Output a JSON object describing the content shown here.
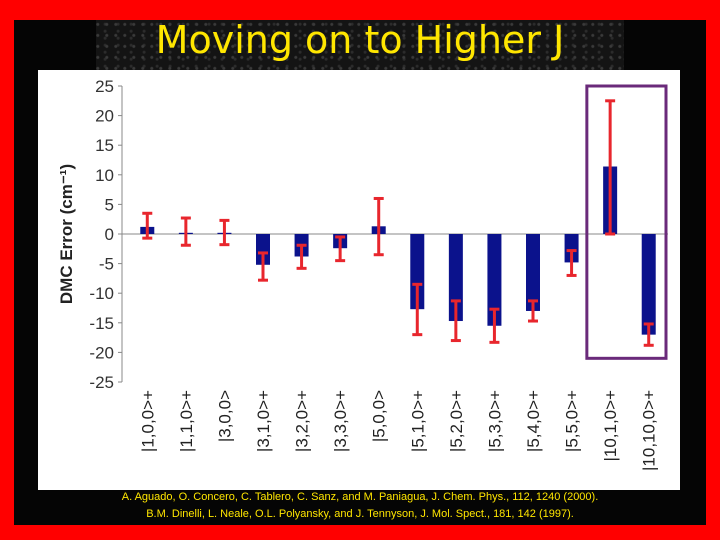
{
  "slide": {
    "title": "Moving on to Higher J",
    "references": [
      {
        "text": "A. Aguado, O. Concero, C. Tablero, C. Sanz, and M. Paniagua, J. Chem. Phys., 112, 1240 (2000)."
      },
      {
        "text": "B.M. Dinelli, L. Neale, O.L. Polyansky, and J. Tennyson, J. Mol. Spect., 181, 142 (1997)."
      }
    ]
  },
  "chart_data": {
    "type": "bar",
    "title": "",
    "xlabel": "",
    "ylabel": "DMC Error (cm⁻¹)",
    "ylim": [
      -25,
      25
    ],
    "yticks": [
      25,
      20,
      15,
      10,
      5,
      0,
      -5,
      -10,
      -15,
      -20,
      -25
    ],
    "categories": [
      "|1,0,0>+",
      "|1,1,0>+",
      "|3,0,0>",
      "|3,1,0>+",
      "|3,2,0>+",
      "|3,3,0>+",
      "|5,0,0>",
      "|5,1,0>+",
      "|5,2,0>+",
      "|5,3,0>+",
      "|5,4,0>+",
      "|5,5,0>+",
      "|10,1,0>+",
      "|10,10,0>+"
    ],
    "series": [
      {
        "values": [
          1.2,
          0.2,
          0.2,
          -5.2,
          -3.8,
          -2.4,
          1.3,
          -12.7,
          -14.7,
          -15.5,
          -13.0,
          -4.8,
          11.4,
          -17.0
        ],
        "error_low": [
          -0.7,
          -1.9,
          -1.8,
          -7.8,
          -5.8,
          -4.5,
          -3.5,
          -17.0,
          -18.0,
          -18.3,
          -14.7,
          -7.0,
          0.0,
          -18.8
        ],
        "error_high": [
          3.5,
          2.7,
          2.3,
          -3.2,
          -1.9,
          -0.5,
          6.0,
          -8.5,
          -11.3,
          -12.7,
          -11.3,
          -2.8,
          22.5,
          -15.2
        ]
      }
    ],
    "highlight_category": "|10,1,0>+",
    "colors": {
      "bar": "#0b128c",
      "error_bar": "#e8262d",
      "highlight_box": "#6a2a7a",
      "axis": "#888888"
    },
    "grid": false,
    "legend": "none"
  }
}
